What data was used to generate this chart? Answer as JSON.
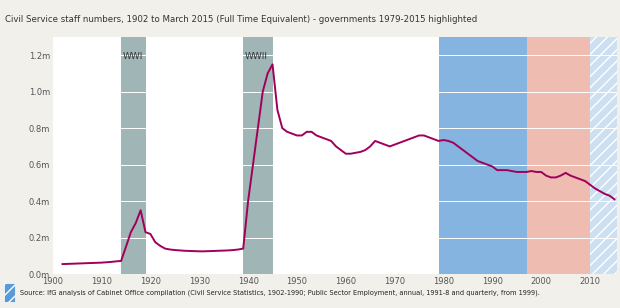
{
  "title": "Civil Service staff numbers, 1902 to March 2015 (Full Time Equivalent) - governments 1979-2015 highlighted",
  "source_text": "Source: IfG analysis of Cabinet Office compilation (Civil Service Statistics, 1902-1990; Public Sector Employment, annual, 1991-8 and quarterly, from 1999).",
  "line_color": "#a0005a",
  "bg_color": "#f2f0eb",
  "plot_bg": "#ffffff",
  "title_bg": "#d6d4ce",
  "source_bg": "#bebcb7",
  "wwi_color": "#8fa8a8",
  "wwii_color": "#8fa8a8",
  "blue_gov_color": "#5b9bd5",
  "red_gov_color": "#e8a090",
  "hatch_fg_color": "#5b9bd5",
  "wwi_start": 1914,
  "wwi_end": 1919,
  "wwii_start": 1939,
  "wwii_end": 1945,
  "blue1_start": 1979,
  "red_start": 1997,
  "hatch_start": 2010,
  "hatch_end": 2015.5,
  "xmin": 1900,
  "xmax": 2015.5,
  "ymin": 0,
  "ymax": 1300000,
  "yticks": [
    0,
    200000,
    400000,
    600000,
    800000,
    1000000,
    1200000
  ],
  "ytick_labels": [
    "0.0m",
    "0.2m",
    "0.4m",
    "0.6m",
    "0.8m",
    "1.0m",
    "1.2m"
  ],
  "xticks": [
    1900,
    1910,
    1920,
    1930,
    1940,
    1950,
    1960,
    1970,
    1980,
    1990,
    2000,
    2010
  ],
  "years": [
    1902,
    1903,
    1904,
    1905,
    1906,
    1907,
    1908,
    1909,
    1910,
    1911,
    1912,
    1913,
    1914,
    1915,
    1916,
    1917,
    1918,
    1919,
    1920,
    1921,
    1922,
    1923,
    1924,
    1925,
    1926,
    1927,
    1928,
    1929,
    1930,
    1931,
    1932,
    1933,
    1934,
    1935,
    1936,
    1937,
    1938,
    1939,
    1940,
    1941,
    1942,
    1943,
    1944,
    1945,
    1946,
    1947,
    1948,
    1949,
    1950,
    1951,
    1952,
    1953,
    1954,
    1955,
    1956,
    1957,
    1958,
    1959,
    1960,
    1961,
    1962,
    1963,
    1964,
    1965,
    1966,
    1967,
    1968,
    1969,
    1970,
    1971,
    1972,
    1973,
    1974,
    1975,
    1976,
    1977,
    1978,
    1979,
    1980,
    1981,
    1982,
    1983,
    1984,
    1985,
    1986,
    1987,
    1988,
    1989,
    1990,
    1991,
    1992,
    1993,
    1994,
    1995,
    1996,
    1997,
    1998,
    1999,
    2000,
    2001,
    2002,
    2003,
    2004,
    2005,
    2006,
    2007,
    2008,
    2009,
    2010,
    2011,
    2012,
    2013,
    2014,
    2015
  ],
  "values": [
    55000,
    56000,
    57000,
    58000,
    59000,
    60000,
    61000,
    62000,
    63000,
    65000,
    67000,
    70000,
    72000,
    150000,
    230000,
    280000,
    350000,
    230000,
    220000,
    175000,
    155000,
    140000,
    135000,
    132000,
    130000,
    128000,
    127000,
    126000,
    125000,
    125000,
    126000,
    127000,
    128000,
    129000,
    130000,
    132000,
    135000,
    140000,
    400000,
    600000,
    800000,
    1000000,
    1100000,
    1150000,
    900000,
    800000,
    780000,
    770000,
    760000,
    760000,
    780000,
    780000,
    760000,
    750000,
    740000,
    730000,
    700000,
    680000,
    660000,
    660000,
    665000,
    670000,
    680000,
    700000,
    730000,
    720000,
    710000,
    700000,
    710000,
    720000,
    730000,
    740000,
    750000,
    760000,
    760000,
    750000,
    740000,
    730000,
    735000,
    730000,
    720000,
    700000,
    680000,
    660000,
    640000,
    620000,
    610000,
    600000,
    590000,
    570000,
    570000,
    570000,
    565000,
    560000,
    560000,
    560000,
    565000,
    560000,
    560000,
    540000,
    530000,
    530000,
    540000,
    555000,
    540000,
    530000,
    520000,
    510000,
    490000,
    470000,
    455000,
    440000,
    430000,
    410000
  ]
}
